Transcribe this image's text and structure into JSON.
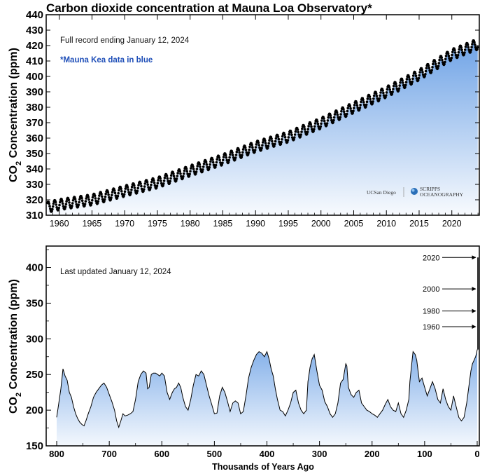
{
  "chart_data": [
    {
      "type": "scatter",
      "title": "Carbon dioxide concentration at Mauna Loa Observatory*",
      "ylabel_main": "CO",
      "ylabel_sub": "2",
      "ylabel_rest": " Concentration (ppm)",
      "xlabel": "",
      "xlim": [
        1958,
        2024.2
      ],
      "ylim": [
        310,
        440
      ],
      "x_ticks": [
        1960,
        1965,
        1970,
        1975,
        1980,
        1985,
        1990,
        1995,
        2000,
        2005,
        2010,
        2015,
        2020
      ],
      "y_ticks": [
        310,
        320,
        330,
        340,
        350,
        360,
        370,
        380,
        390,
        400,
        410,
        420,
        430,
        440
      ],
      "annotations": [
        "Full record ending January 12, 2024",
        "*Mauna Kea data in blue"
      ],
      "logos": [
        "UCSan Diego",
        "SCRIPPS",
        "OCEANOGRAPHY"
      ],
      "marker_color": "#000000",
      "fill_color": "#6fa3e6",
      "series": [
        {
          "x": [
            1958,
            1960,
            1965,
            1970,
            1975,
            1980,
            1985,
            1990,
            1995,
            2000,
            2005,
            2010,
            2015,
            2020,
            2024
          ],
          "values": [
            315,
            316.9,
            320.0,
            325.7,
            331.1,
            338.8,
            346.1,
            354.4,
            360.8,
            369.7,
            379.8,
            389.9,
            401.0,
            414.2,
            421
          ]
        }
      ],
      "seasonal_amplitude_ppm": 3.5,
      "grid": false
    },
    {
      "type": "line",
      "xlabel": "Thousands of Years Ago",
      "ylabel_main": "CO",
      "ylabel_sub": "2",
      "ylabel_rest": " Concentration (ppm)",
      "xlim": [
        820,
        -4
      ],
      "ylim": [
        150,
        430
      ],
      "x_ticks": [
        800,
        700,
        600,
        500,
        400,
        300,
        200,
        100,
        0
      ],
      "y_ticks": [
        150,
        200,
        250,
        300,
        350,
        400
      ],
      "annotations": [
        "Last updated January 12, 2024"
      ],
      "year_markers": [
        {
          "label": "2020",
          "value": 414
        },
        {
          "label": "2000",
          "value": 370
        },
        {
          "label": "1980",
          "value": 339
        },
        {
          "label": "1960",
          "value": 317
        }
      ],
      "line_color": "#000000",
      "fill_color": "#6fa3e6",
      "series": [
        {
          "x": [
            800,
            797,
            792,
            788,
            784,
            780,
            776,
            772,
            768,
            764,
            760,
            756,
            752,
            748,
            744,
            740,
            735,
            730,
            725,
            720,
            715,
            710,
            705,
            700,
            695,
            690,
            686,
            682,
            678,
            674,
            670,
            665,
            660,
            655,
            650,
            645,
            640,
            635,
            630,
            627,
            624,
            620,
            616,
            612,
            608,
            604,
            600,
            595,
            590,
            585,
            580,
            576,
            572,
            568,
            564,
            560,
            555,
            550,
            545,
            540,
            535,
            530,
            525,
            520,
            515,
            510,
            505,
            500,
            495,
            490,
            485,
            480,
            475,
            470,
            465,
            460,
            455,
            450,
            445,
            440,
            435,
            430,
            425,
            420,
            415,
            410,
            405,
            400,
            396,
            392,
            388,
            384,
            380,
            375,
            370,
            365,
            360,
            355,
            350,
            345,
            340,
            335,
            330,
            325,
            322,
            318,
            314,
            310,
            305,
            300,
            295,
            290,
            285,
            280,
            275,
            270,
            265,
            260,
            255,
            250,
            248,
            245,
            240,
            235,
            230,
            225,
            220,
            215,
            210,
            205,
            200,
            195,
            190,
            185,
            180,
            175,
            170,
            165,
            160,
            155,
            150,
            145,
            140,
            135,
            130,
            128,
            125,
            122,
            118,
            115,
            110,
            105,
            100,
            95,
            90,
            85,
            80,
            75,
            70,
            65,
            60,
            55,
            50,
            45,
            40,
            35,
            30,
            25,
            20,
            15,
            12,
            9,
            6,
            3,
            1,
            0
          ],
          "values": [
            190,
            205,
            230,
            258,
            248,
            242,
            225,
            218,
            205,
            195,
            188,
            183,
            180,
            178,
            186,
            195,
            205,
            218,
            225,
            230,
            235,
            238,
            232,
            222,
            212,
            200,
            185,
            176,
            185,
            195,
            192,
            193,
            195,
            198,
            215,
            240,
            250,
            255,
            252,
            230,
            232,
            250,
            252,
            252,
            250,
            248,
            252,
            248,
            225,
            215,
            225,
            230,
            232,
            238,
            232,
            218,
            205,
            200,
            215,
            235,
            250,
            248,
            255,
            250,
            235,
            220,
            208,
            195,
            196,
            220,
            232,
            225,
            212,
            198,
            210,
            213,
            210,
            195,
            198,
            220,
            245,
            260,
            270,
            278,
            282,
            280,
            275,
            282,
            272,
            258,
            248,
            230,
            215,
            200,
            198,
            192,
            200,
            210,
            225,
            228,
            210,
            200,
            195,
            200,
            240,
            260,
            272,
            278,
            255,
            235,
            228,
            212,
            205,
            195,
            190,
            195,
            210,
            238,
            243,
            265,
            262,
            232,
            222,
            218,
            225,
            228,
            210,
            205,
            200,
            198,
            195,
            193,
            190,
            195,
            200,
            208,
            215,
            205,
            200,
            198,
            210,
            195,
            190,
            200,
            215,
            240,
            262,
            282,
            278,
            270,
            240,
            245,
            232,
            220,
            230,
            240,
            230,
            215,
            210,
            230,
            215,
            205,
            200,
            220,
            205,
            190,
            185,
            190,
            210,
            238,
            255,
            265,
            270,
            275,
            280,
            285
          ]
        }
      ],
      "grid": false
    }
  ]
}
